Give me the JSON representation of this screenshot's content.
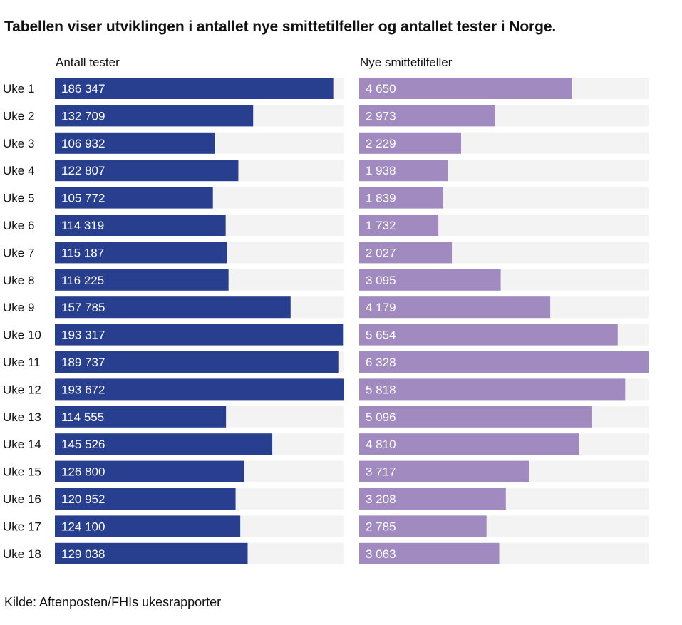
{
  "title": "Tabellen viser utviklingen i antallet nye smittetilfeller og antallet tester i Norge.",
  "source": "Kilde: Aftenposten/FHIs ukesrapporter",
  "colors": {
    "tests": "#283f8f",
    "cases": "#a08abf",
    "track": "#f3f3f3"
  },
  "chart_data": {
    "type": "bar",
    "orientation": "horizontal",
    "categories": [
      "Uke 1",
      "Uke 2",
      "Uke 3",
      "Uke 4",
      "Uke 5",
      "Uke 6",
      "Uke 7",
      "Uke 8",
      "Uke 9",
      "Uke 10",
      "Uke 11",
      "Uke 12",
      "Uke 13",
      "Uke 14",
      "Uke 15",
      "Uke 16",
      "Uke 17",
      "Uke 18"
    ],
    "series": [
      {
        "name": "Antall tester",
        "values": [
          186347,
          132709,
          106932,
          122807,
          105772,
          114319,
          115187,
          116225,
          157785,
          193317,
          189737,
          193672,
          114555,
          145526,
          126800,
          120952,
          124100,
          129038
        ],
        "labels": [
          "186 347",
          "132 709",
          "106 932",
          "122 807",
          "105 772",
          "114 319",
          "115 187",
          "116 225",
          "157 785",
          "193 317",
          "189 737",
          "193 672",
          "114 555",
          "145 526",
          "126 800",
          "120 952",
          "124 100",
          "129 038"
        ]
      },
      {
        "name": "Nye smittetilfeller",
        "values": [
          4650,
          2973,
          2229,
          1938,
          1839,
          1732,
          2027,
          3095,
          4179,
          5654,
          6328,
          5818,
          5096,
          4810,
          3717,
          3208,
          2785,
          3063
        ],
        "labels": [
          "4 650",
          "2 973",
          "2 229",
          "1 938",
          "1 839",
          "1 732",
          "2 027",
          "3 095",
          "4 179",
          "5 654",
          "6 328",
          "5 818",
          "5 096",
          "4 810",
          "3 717",
          "3 208",
          "2 785",
          "3 063"
        ]
      }
    ],
    "xlim_tests": [
      0,
      193672
    ],
    "xlim_cases": [
      0,
      6328
    ],
    "grid": false,
    "legend": "none"
  }
}
